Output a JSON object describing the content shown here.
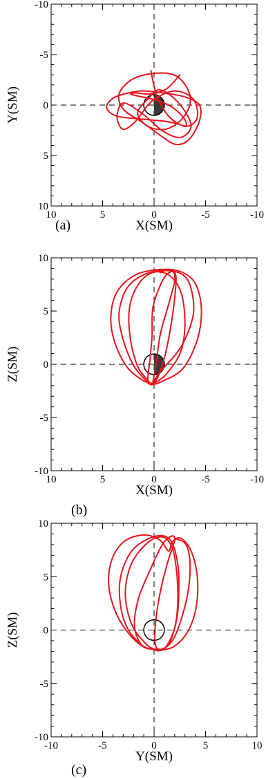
{
  "chart_data": [
    {
      "type": "line",
      "panel_label": "(a)",
      "xlabel": "X(SM)",
      "ylabel": "Y(SM)",
      "xlim": [
        10,
        -10
      ],
      "ylim": [
        10,
        -10
      ],
      "x_ticks": [
        "10",
        "5",
        "0",
        "-5",
        "-10"
      ],
      "y_ticks": [
        "-10",
        "-5",
        "0",
        "5",
        "10"
      ],
      "reference_lines": "dashed at x=0 and y=0",
      "earth": "circle of radius 1 at origin, night side shaded",
      "series": [
        {
          "color": "#e8141c",
          "x": [
            0.3,
            -0.3,
            -1.6,
            -3.2,
            -4.2,
            -3.8,
            -2.0,
            0.2,
            1.8,
            3.0,
            3.6,
            3.0,
            1.2,
            -0.9,
            -2.6,
            -3.6,
            -2.4,
            -0.6,
            0.6,
            1.6,
            0.6,
            -1.1,
            -2.6,
            -3.5,
            -3.2,
            -1.9,
            0.3,
            2.2,
            3.4,
            3.0,
            1.3,
            -0.6,
            -2.1,
            -3.4,
            -4.4,
            -4.4,
            -3.0,
            -0.9,
            1.2,
            2.9,
            4.1,
            4.6,
            3.6,
            1.1,
            -1.0,
            -2.4,
            -3.1,
            -2.9,
            -1.6,
            0.2,
            1.6,
            2.3,
            1.7,
            0.4,
            -1.2,
            -2.5
          ],
          "y": [
            -3.4,
            -0.8,
            1.3,
            2.1,
            1.2,
            -0.6,
            -1.4,
            -0.4,
            1.6,
            2.4,
            1.2,
            -0.2,
            0.8,
            2.6,
            3.2,
            2.0,
            -0.2,
            -1.5,
            -0.6,
            0.8,
            2.1,
            2.4,
            1.5,
            -0.1,
            -1.7,
            -3.0,
            -3.1,
            -2.5,
            -1.1,
            0.4,
            1.6,
            3.0,
            3.9,
            3.4,
            1.6,
            0.0,
            -0.8,
            -1.2,
            -1.4,
            -1.1,
            -0.6,
            0.3,
            1.1,
            1.4,
            1.6,
            1.9,
            2.1,
            1.3,
            0.1,
            -0.6,
            -0.9,
            -1.1,
            -1.2,
            -1.1,
            -1.6,
            -3.0
          ]
        }
      ]
    },
    {
      "type": "line",
      "panel_label": "(b)",
      "xlabel": "X(SM)",
      "ylabel": "Z(SM)",
      "xlim": [
        10,
        -10
      ],
      "ylim": [
        -10,
        10
      ],
      "x_ticks": [
        "10",
        "5",
        "0",
        "-5",
        "-10"
      ],
      "y_ticks": [
        "10",
        "5",
        "0",
        "-5",
        "-10"
      ],
      "reference_lines": "dashed at x=0 and z=0",
      "earth": "circle of radius 1 at origin, night side shaded",
      "series": [
        {
          "color": "#e8141c",
          "x": [
            0.2,
            1.1,
            2.6,
            3.8,
            4.2,
            3.6,
            1.8,
            -0.6,
            -2.6,
            -4.0,
            -4.6,
            -4.2,
            -2.8,
            -0.8,
            0.3,
            0.9,
            2.0,
            3.0,
            3.4,
            2.6,
            0.8,
            -1.2,
            -2.8,
            -3.6,
            -3.8,
            -2.6,
            -0.5,
            0.2,
            0.6,
            1.6,
            2.3,
            2.4,
            1.6,
            0.2,
            -1.4,
            -2.6,
            -3.0,
            -2.6,
            -1.2,
            0.0,
            0.1,
            -0.2,
            -0.6,
            -1.4,
            -2.0,
            -1.8,
            -0.9,
            0.1,
            0.2,
            0.4,
            0.6,
            -0.2,
            -1.0,
            -1.6,
            -2.0,
            -2.1,
            -1.4,
            -0.6
          ],
          "y": [
            -1.8,
            -1.5,
            -0.3,
            2.0,
            4.4,
            6.8,
            8.4,
            8.9,
            8.7,
            7.6,
            5.2,
            2.3,
            -0.4,
            -1.6,
            -1.9,
            -1.4,
            -0.1,
            2.3,
            4.8,
            7.2,
            8.5,
            8.8,
            8.4,
            7.1,
            4.6,
            1.6,
            -0.8,
            -1.9,
            -1.5,
            -0.2,
            2.4,
            5.2,
            7.4,
            8.6,
            8.4,
            6.8,
            4.0,
            1.2,
            -0.9,
            -1.8,
            -1.6,
            0.0,
            2.8,
            5.6,
            7.8,
            8.7,
            8.0,
            5.4,
            2.6,
            0.4,
            -1.7,
            -1.5,
            0.6,
            3.4,
            6.2,
            8.4,
            8.9,
            8.6
          ]
        }
      ]
    },
    {
      "type": "line",
      "panel_label": "(c)",
      "xlabel": "Y(SM)",
      "ylabel": "Z(SM)",
      "xlim": [
        -10,
        10
      ],
      "ylim": [
        -10,
        10
      ],
      "x_ticks": [
        "-10",
        "-5",
        "0",
        "5",
        "10"
      ],
      "y_ticks": [
        "10",
        "5",
        "0",
        "-5",
        "-10"
      ],
      "reference_lines": "dashed at y=0 and z=0",
      "earth": "circle of radius 1 at origin",
      "series": [
        {
          "color": "#e8141c",
          "x": [
            -0.1,
            -1.0,
            -2.4,
            -3.7,
            -4.4,
            -4.1,
            -2.9,
            -1.0,
            0.6,
            1.4,
            1.8,
            2.6,
            3.6,
            4.2,
            4.1,
            3.3,
            2.0,
            0.6,
            -0.2,
            -1.2,
            -2.6,
            -3.3,
            -3.2,
            -2.0,
            0.2,
            1.6,
            2.3,
            2.4,
            2.2,
            1.5,
            0.6,
            0.0,
            -0.9,
            -2.2,
            -2.8,
            -2.2,
            -0.6,
            0.9,
            1.8,
            2.2,
            2.3,
            2.0,
            1.2,
            0.5,
            0.1,
            0.2,
            0.7,
            1.4,
            2.0,
            1.7,
            0.8,
            -0.3,
            -1.5,
            -1.9,
            -1.2,
            0.1,
            1.0,
            1.9,
            2.7,
            3.3,
            3.5,
            3.1,
            2.0
          ],
          "y": [
            -1.8,
            -1.6,
            -0.4,
            1.6,
            4.2,
            6.6,
            8.3,
            8.9,
            8.4,
            7.4,
            8.3,
            8.6,
            7.4,
            5.0,
            2.2,
            -0.1,
            -1.5,
            -1.9,
            -1.8,
            -1.4,
            0.2,
            2.6,
            5.2,
            7.6,
            8.8,
            8.4,
            6.2,
            3.6,
            1.0,
            -1.2,
            -1.9,
            -1.8,
            -1.2,
            0.6,
            3.4,
            6.2,
            8.2,
            8.7,
            7.6,
            5.4,
            2.6,
            0.2,
            -1.5,
            -1.8,
            -1.2,
            1.2,
            4.0,
            6.6,
            8.4,
            8.8,
            8.0,
            5.8,
            3.0,
            0.4,
            -1.4,
            -1.8,
            -1.7,
            -0.8,
            1.2,
            3.6,
            6.2,
            8.0,
            8.6
          ]
        }
      ]
    }
  ]
}
